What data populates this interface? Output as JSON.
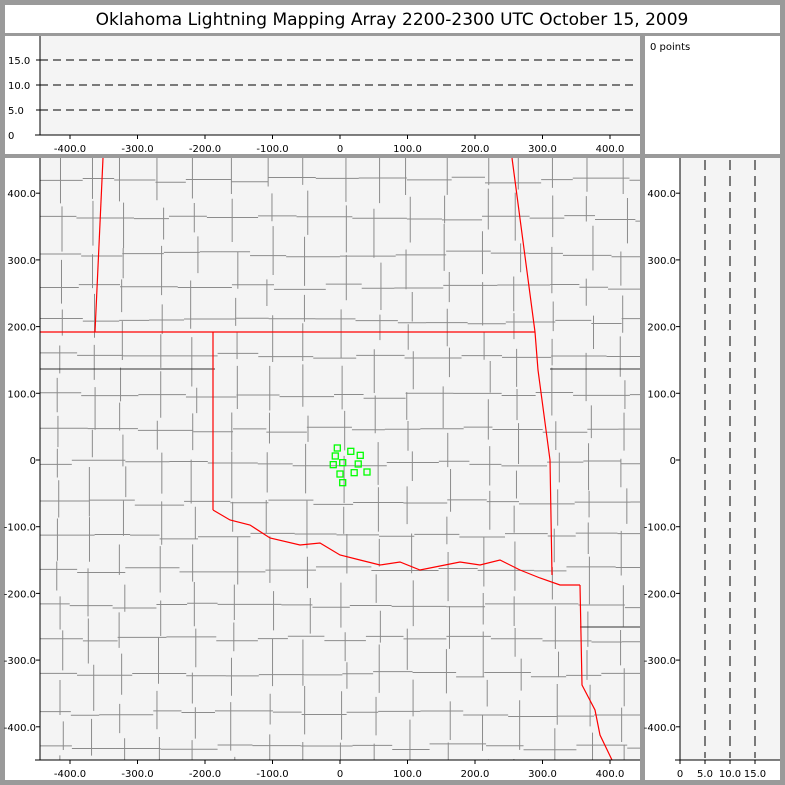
{
  "title": "Oklahoma Lightning Mapping Array   2200-2300 UTC  October 15, 2009",
  "points_label": "0 points",
  "colors": {
    "state_border": "#ff0000",
    "county_border": "#8c8c8c",
    "source_marker": "#00ff00",
    "plot_background": "#f4f4f4",
    "frame": "#9a9a9a"
  },
  "chart_data": [
    {
      "panel": "altitude-vs-east-west",
      "type": "scatter",
      "xlim": [
        -460,
        440
      ],
      "ylim": [
        0,
        20
      ],
      "x_ticks": [
        "-400.0",
        "-300.0",
        "-200.0",
        "-100.0",
        "0",
        "100.0",
        "200.0",
        "300.0",
        "400.0"
      ],
      "y_ticks": [
        "0",
        "5.0",
        "10.0",
        "15.0"
      ],
      "grid": "dashed horizontal at 5, 10, 15",
      "points": []
    },
    {
      "panel": "plan-view-map",
      "type": "scatter",
      "xlim": [
        -445,
        445
      ],
      "ylim": [
        -445,
        445
      ],
      "x_ticks": [
        "-400.0",
        "-300.0",
        "-200.0",
        "-100.0",
        "0",
        "100.0",
        "200.0",
        "300.0",
        "400.0"
      ],
      "y_ticks": [
        "400.0",
        "300.0",
        "200.0",
        "100.0",
        "0",
        "-100.0",
        "-200.0",
        "-300.0",
        "-400.0"
      ],
      "markers": [
        [
          -4,
          18
        ],
        [
          16,
          13
        ],
        [
          -7,
          6
        ],
        [
          30,
          7
        ],
        [
          4,
          -4
        ],
        [
          27,
          -6
        ],
        [
          -10,
          -7
        ],
        [
          0,
          -21
        ],
        [
          21,
          -19
        ],
        [
          40,
          -18
        ],
        [
          4,
          -34
        ]
      ],
      "marker_shape": "hollow-square"
    },
    {
      "panel": "north-south-vs-altitude",
      "type": "scatter",
      "xlim": [
        0,
        20
      ],
      "ylim": [
        -445,
        445
      ],
      "x_ticks": [
        "0",
        "5.0",
        "10.0",
        "15.0"
      ],
      "y_ticks": [
        "400.0",
        "300.0",
        "200.0",
        "100.0",
        "0",
        "-100.0",
        "-200.0",
        "-300.0",
        "-400.0"
      ],
      "grid": "dashed vertical at 5, 10, 15",
      "points": []
    }
  ]
}
